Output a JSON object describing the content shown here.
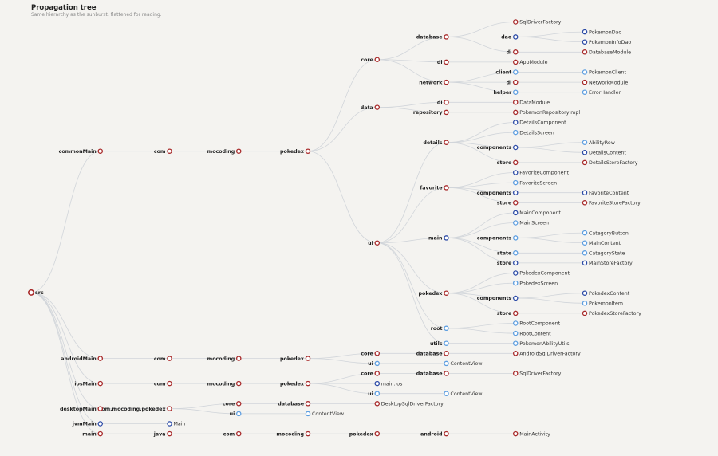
{
  "title": "Propagation tree",
  "subtitle": "Same hierarchy as the sunburst, flattened for reading.",
  "colors": {
    "red": "#a82a2a",
    "navy": "#2b4aa6",
    "lightblue": "#5d9ee0",
    "edge": "#d1d5da"
  },
  "tree": {
    "label": "src",
    "c": "red",
    "children": [
      {
        "label": "commonMain",
        "c": "red",
        "children": [
          {
            "label": "com",
            "c": "red",
            "children": [
              {
                "label": "mocoding",
                "c": "red",
                "children": [
                  {
                    "label": "pokedex",
                    "c": "red",
                    "children": [
                      {
                        "label": "core",
                        "c": "red",
                        "children": [
                          {
                            "label": "database",
                            "c": "red",
                            "children": [
                              {
                                "label": "SqlDriverFactory",
                                "c": "red"
                              },
                              {
                                "label": "dao",
                                "c": "navy",
                                "children": [
                                  {
                                    "label": "PokemonDao",
                                    "c": "navy"
                                  },
                                  {
                                    "label": "PokemonInfoDao",
                                    "c": "navy"
                                  }
                                ]
                              },
                              {
                                "label": "di",
                                "c": "red",
                                "children": [
                                  {
                                    "label": "DatabaseModule",
                                    "c": "red"
                                  }
                                ]
                              }
                            ]
                          },
                          {
                            "label": "di",
                            "c": "red",
                            "children": [
                              {
                                "label": "AppModule",
                                "c": "red"
                              }
                            ]
                          },
                          {
                            "label": "network",
                            "c": "red",
                            "children": [
                              {
                                "label": "client",
                                "c": "lightblue",
                                "children": [
                                  {
                                    "label": "PokemonClient",
                                    "c": "lightblue"
                                  }
                                ]
                              },
                              {
                                "label": "di",
                                "c": "red",
                                "children": [
                                  {
                                    "label": "NetworkModule",
                                    "c": "red"
                                  }
                                ]
                              },
                              {
                                "label": "helper",
                                "c": "lightblue",
                                "children": [
                                  {
                                    "label": "ErrorHandler",
                                    "c": "lightblue"
                                  }
                                ]
                              }
                            ]
                          }
                        ]
                      },
                      {
                        "label": "data",
                        "c": "red",
                        "children": [
                          {
                            "label": "di",
                            "c": "red",
                            "children": [
                              {
                                "label": "DataModule",
                                "c": "red"
                              }
                            ]
                          },
                          {
                            "label": "repository",
                            "c": "red",
                            "children": [
                              {
                                "label": "PokemonRepositoryImpl",
                                "c": "red"
                              }
                            ]
                          }
                        ]
                      },
                      {
                        "label": "ui",
                        "c": "red",
                        "children": [
                          {
                            "label": "details",
                            "c": "red",
                            "children": [
                              {
                                "label": "DetailsComponent",
                                "c": "navy"
                              },
                              {
                                "label": "DetailsScreen",
                                "c": "lightblue"
                              },
                              {
                                "label": "components",
                                "c": "navy",
                                "children": [
                                  {
                                    "label": "AbilityRow",
                                    "c": "lightblue"
                                  },
                                  {
                                    "label": "DetailsContent",
                                    "c": "navy"
                                  }
                                ]
                              },
                              {
                                "label": "store",
                                "c": "red",
                                "children": [
                                  {
                                    "label": "DetailsStoreFactory",
                                    "c": "red"
                                  }
                                ]
                              }
                            ]
                          },
                          {
                            "label": "favorite",
                            "c": "red",
                            "children": [
                              {
                                "label": "FavoriteComponent",
                                "c": "navy"
                              },
                              {
                                "label": "FavoriteScreen",
                                "c": "lightblue"
                              },
                              {
                                "label": "components",
                                "c": "navy",
                                "children": [
                                  {
                                    "label": "FavoriteContent",
                                    "c": "navy"
                                  }
                                ]
                              },
                              {
                                "label": "store",
                                "c": "red",
                                "children": [
                                  {
                                    "label": "FavoriteStoreFactory",
                                    "c": "red"
                                  }
                                ]
                              }
                            ]
                          },
                          {
                            "label": "main",
                            "c": "navy",
                            "children": [
                              {
                                "label": "MainComponent",
                                "c": "navy"
                              },
                              {
                                "label": "MainScreen",
                                "c": "lightblue"
                              },
                              {
                                "label": "components",
                                "c": "lightblue",
                                "children": [
                                  {
                                    "label": "CategoryButton",
                                    "c": "lightblue"
                                  },
                                  {
                                    "label": "MainContent",
                                    "c": "lightblue"
                                  }
                                ]
                              },
                              {
                                "label": "state",
                                "c": "lightblue",
                                "children": [
                                  {
                                    "label": "CategoryState",
                                    "c": "lightblue"
                                  }
                                ]
                              },
                              {
                                "label": "store",
                                "c": "navy",
                                "children": [
                                  {
                                    "label": "MainStoreFactory",
                                    "c": "navy"
                                  }
                                ]
                              }
                            ]
                          },
                          {
                            "label": "pokedex",
                            "c": "red",
                            "children": [
                              {
                                "label": "PokedexComponent",
                                "c": "navy"
                              },
                              {
                                "label": "PokedexScreen",
                                "c": "lightblue"
                              },
                              {
                                "label": "components",
                                "c": "navy",
                                "children": [
                                  {
                                    "label": "PokedexContent",
                                    "c": "navy"
                                  },
                                  {
                                    "label": "PokemonItem",
                                    "c": "lightblue"
                                  }
                                ]
                              },
                              {
                                "label": "store",
                                "c": "red",
                                "children": [
                                  {
                                    "label": "PokedexStoreFactory",
                                    "c": "red"
                                  }
                                ]
                              }
                            ]
                          },
                          {
                            "label": "root",
                            "c": "lightblue",
                            "children": [
                              {
                                "label": "RootComponent",
                                "c": "lightblue"
                              },
                              {
                                "label": "RootContent",
                                "c": "lightblue"
                              }
                            ]
                          },
                          {
                            "label": "utils",
                            "c": "lightblue",
                            "children": [
                              {
                                "label": "PokemonAbilityUtils",
                                "c": "lightblue"
                              }
                            ]
                          }
                        ]
                      }
                    ]
                  }
                ]
              }
            ]
          }
        ]
      },
      {
        "label": "androidMain",
        "c": "red",
        "children": [
          {
            "label": "com",
            "c": "red",
            "children": [
              {
                "label": "mocoding",
                "c": "red",
                "children": [
                  {
                    "label": "pokedex",
                    "c": "red",
                    "children": [
                      {
                        "label": "core",
                        "c": "red",
                        "children": [
                          {
                            "label": "database",
                            "c": "red",
                            "children": [
                              {
                                "label": "AndroidSqlDriverFactory",
                                "c": "red"
                              }
                            ]
                          }
                        ]
                      },
                      {
                        "label": "ui",
                        "c": "lightblue",
                        "children": [
                          {
                            "label": "ContentView",
                            "c": "lightblue"
                          }
                        ]
                      }
                    ]
                  }
                ]
              }
            ]
          }
        ]
      },
      {
        "label": "iosMain",
        "c": "red",
        "children": [
          {
            "label": "com",
            "c": "red",
            "children": [
              {
                "label": "mocoding",
                "c": "red",
                "children": [
                  {
                    "label": "pokedex",
                    "c": "red",
                    "children": [
                      {
                        "label": "core",
                        "c": "red",
                        "children": [
                          {
                            "label": "database",
                            "c": "red",
                            "children": [
                              {
                                "label": "SqlDriverFactory",
                                "c": "red"
                              }
                            ]
                          }
                        ]
                      },
                      {
                        "label": "main.ios",
                        "c": "navy"
                      },
                      {
                        "label": "ui",
                        "c": "lightblue",
                        "children": [
                          {
                            "label": "ContentView",
                            "c": "lightblue"
                          }
                        ]
                      }
                    ]
                  }
                ]
              }
            ]
          }
        ]
      },
      {
        "label": "desktopMain",
        "c": "red",
        "children": [
          {
            "label": "com.mocoding.pokedex",
            "c": "red",
            "children": [
              {
                "label": "core",
                "c": "red",
                "children": [
                  {
                    "label": "database",
                    "c": "red",
                    "children": [
                      {
                        "label": "DesktopSqlDriverFactory",
                        "c": "red"
                      }
                    ]
                  }
                ]
              },
              {
                "label": "ui",
                "c": "lightblue",
                "children": [
                  {
                    "label": "ContentView",
                    "c": "lightblue"
                  }
                ]
              }
            ]
          }
        ]
      },
      {
        "label": "jvmMain",
        "c": "navy",
        "children": [
          {
            "label": "Main",
            "c": "navy"
          }
        ]
      },
      {
        "label": "main",
        "c": "red",
        "children": [
          {
            "label": "java",
            "c": "red",
            "children": [
              {
                "label": "com",
                "c": "red",
                "children": [
                  {
                    "label": "mocoding",
                    "c": "red",
                    "children": [
                      {
                        "label": "pokedex",
                        "c": "red",
                        "children": [
                          {
                            "label": "android",
                            "c": "red",
                            "children": [
                              {
                                "label": "MainActivity",
                                "c": "red"
                              }
                            ]
                          }
                        ]
                      }
                    ]
                  }
                ]
              }
            ]
          }
        ]
      }
    ]
  }
}
